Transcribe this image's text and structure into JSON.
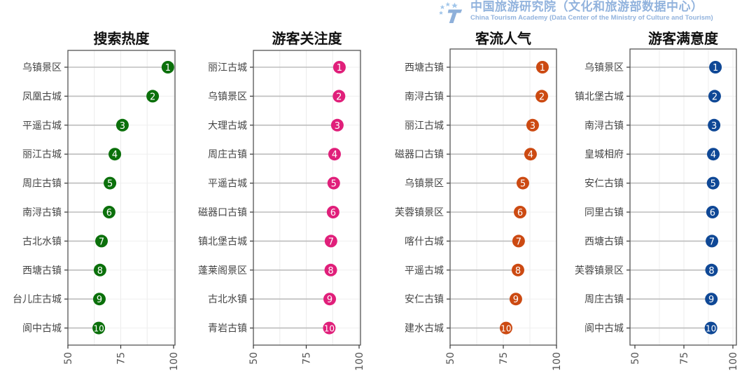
{
  "chart_data": [
    {
      "type": "lollipop",
      "title": "搜索热度",
      "color": "#0b700b",
      "xlim": [
        50,
        100
      ],
      "xticks": [
        "50",
        "75",
        "100"
      ],
      "grid": true,
      "categories": [
        "乌镇景区",
        "凤凰古城",
        "平遥古城",
        "丽江古城",
        "周庄古镇",
        "南浔古镇",
        "古北水镇",
        "西塘古镇",
        "台儿庄古城",
        "阆中古城"
      ],
      "ranks": [
        "1",
        "2",
        "3",
        "4",
        "5",
        "6",
        "7",
        "8",
        "9",
        "10"
      ],
      "values": [
        97.3,
        90.1,
        75.8,
        72.2,
        69.9,
        69.5,
        65.9,
        65.2,
        64.9,
        64.6
      ]
    },
    {
      "type": "lollipop",
      "title": "游客关注度",
      "color": "#e01f7a",
      "xlim": [
        50,
        100
      ],
      "xticks": [
        "50",
        "75",
        "100"
      ],
      "grid": true,
      "categories": [
        "丽江古城",
        "乌镇景区",
        "大理古城",
        "周庄古镇",
        "平遥古城",
        "磁器口古镇",
        "镇北堡古城",
        "蓬莱阁景区",
        "古北水镇",
        "青岩古镇"
      ],
      "ranks": [
        "1",
        "2",
        "3",
        "4",
        "5",
        "6",
        "7",
        "8",
        "9",
        "10"
      ],
      "values": [
        90.7,
        90.5,
        89.7,
        88.4,
        88.0,
        87.7,
        86.7,
        86.6,
        86.1,
        85.9
      ]
    },
    {
      "type": "lollipop",
      "title": "客流人气",
      "color": "#cc4a12",
      "xlim": [
        50,
        100
      ],
      "xticks": [
        "50",
        "75",
        "100"
      ],
      "grid": true,
      "categories": [
        "西塘古镇",
        "南浔古镇",
        "丽江古城",
        "磁器口古镇",
        "乌镇景区",
        "芙蓉镇景区",
        "喀什古城",
        "平遥古城",
        "安仁古镇",
        "建水古城"
      ],
      "ranks": [
        "1",
        "2",
        "3",
        "4",
        "5",
        "6",
        "7",
        "8",
        "9",
        "10"
      ],
      "values": [
        93.4,
        93.1,
        88.8,
        87.8,
        84.2,
        82.9,
        82.2,
        81.9,
        80.9,
        76.3
      ]
    },
    {
      "type": "lollipop",
      "title": "游客满意度",
      "color": "#0f4896",
      "xlim": [
        50,
        100
      ],
      "xticks": [
        "50",
        "75",
        "100"
      ],
      "grid": true,
      "categories": [
        "乌镇景区",
        "镇北堡古城",
        "南浔古镇",
        "皇城相府",
        "安仁古镇",
        "同里古镇",
        "西塘古镇",
        "芙蓉镇景区",
        "周庄古镇",
        "阆中古城"
      ],
      "ranks": [
        "1",
        "2",
        "3",
        "4",
        "5",
        "6",
        "7",
        "8",
        "9",
        "10"
      ],
      "values": [
        91.1,
        90.7,
        90.4,
        90.0,
        89.9,
        89.6,
        89.3,
        89.1,
        89.0,
        88.8
      ]
    }
  ],
  "watermark": {
    "cn": "中国旅游研究院（文化和旅游部数据中心）",
    "en": "China Tourism Academy (Data Center of the Ministry of Culture and Tourism)"
  }
}
